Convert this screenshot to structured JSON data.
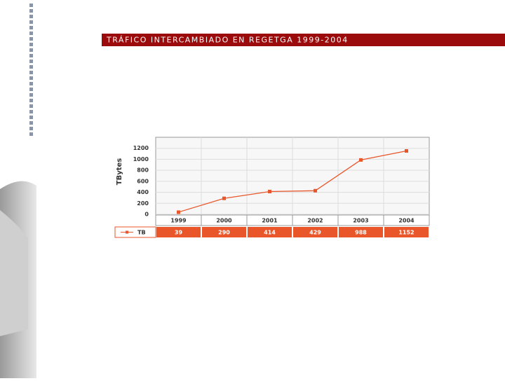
{
  "chart_data": {
    "type": "line",
    "title": "TRÁFICO INTERCAMBIADO EN REGETGA 1999-2004",
    "y_label": "TBytes",
    "categories": [
      "1999",
      "2000",
      "2001",
      "2002",
      "2003",
      "2004"
    ],
    "series": [
      {
        "name": "TB",
        "color": "#e8562a",
        "values": [
          39,
          290,
          414,
          429,
          988,
          1152
        ]
      }
    ],
    "ylim": [
      0,
      1400
    ],
    "yticks": [
      0,
      200,
      400,
      600,
      800,
      1000,
      1200
    ],
    "grid": true
  }
}
